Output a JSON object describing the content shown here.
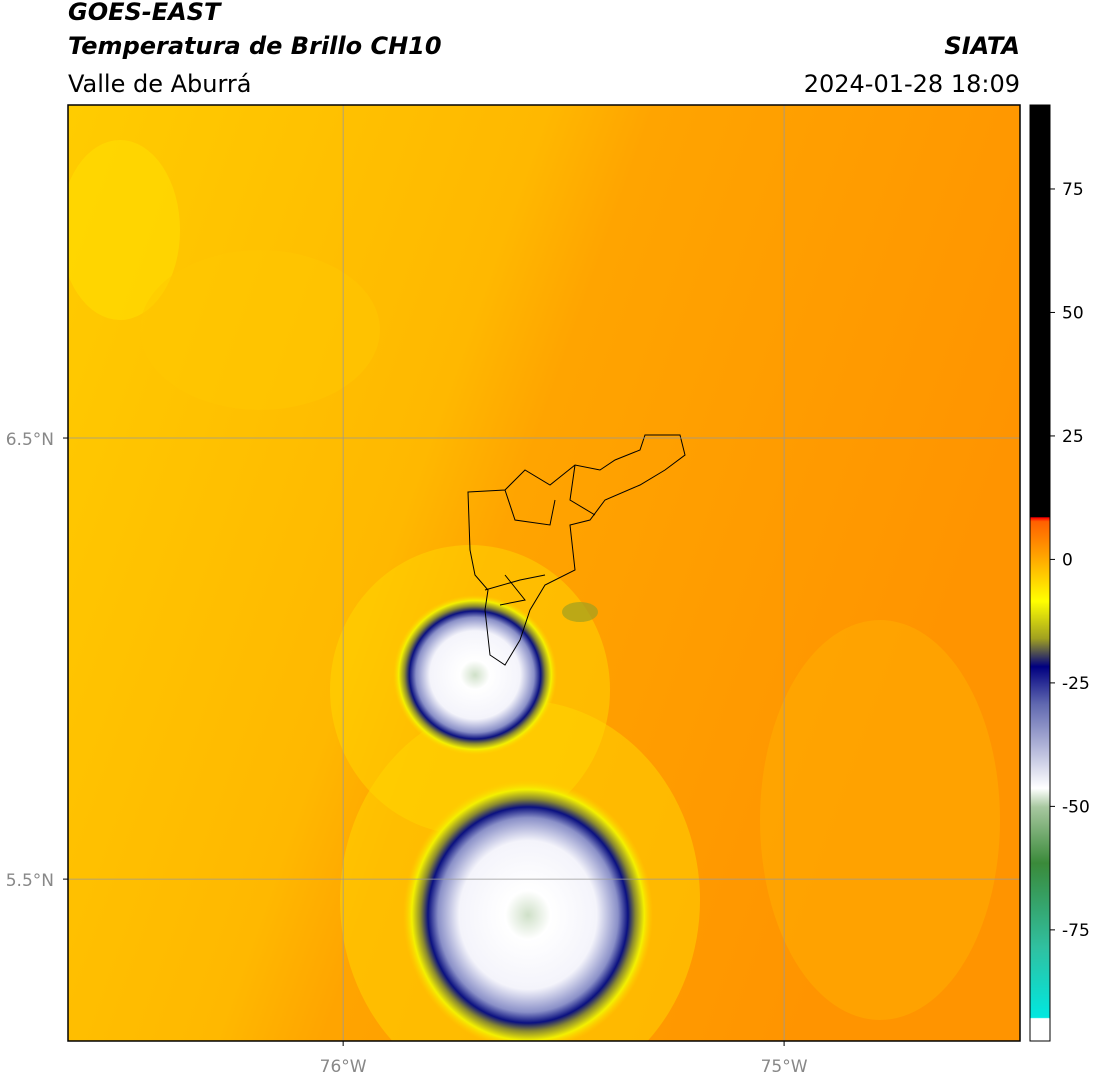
{
  "header": {
    "satellite": "GOES-EAST",
    "product": "Temperatura de Brillo CH10",
    "region": "Valle de Aburrá",
    "source": "SIATA",
    "datetime": "2024-01-28 18:09"
  },
  "chart_data": {
    "type": "map",
    "xlim": [
      -76.624,
      -74.465
    ],
    "ylim": [
      5.133,
      7.255
    ],
    "xticks": [
      {
        "value": -76,
        "label": "76°W"
      },
      {
        "value": -75,
        "label": "75°W"
      }
    ],
    "yticks": [
      {
        "value": 5.5,
        "label": "5.5°N"
      },
      {
        "value": 6.5,
        "label": "6.5°N"
      }
    ],
    "grid": true,
    "colorbar": {
      "lim": [
        -97.5,
        92
      ],
      "ticks": [
        -75,
        -50,
        -25,
        0,
        25,
        50,
        75
      ]
    }
  }
}
